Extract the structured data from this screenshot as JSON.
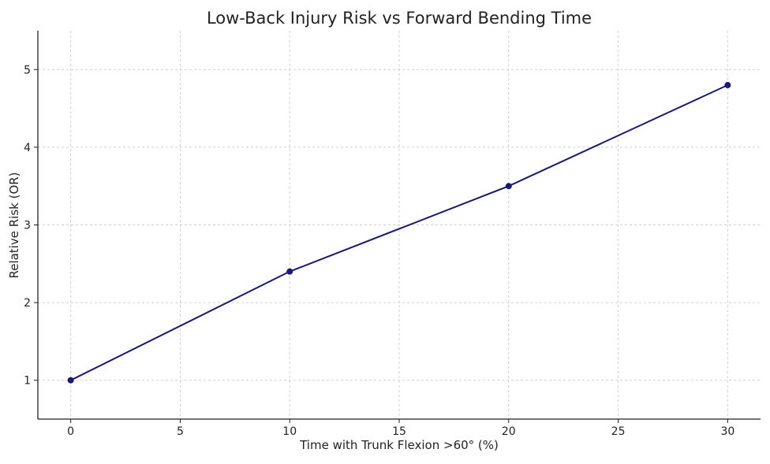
{
  "chart_data": {
    "type": "line",
    "title": "Low-Back Injury Risk vs Forward Bending Time",
    "xlabel": "Time with Trunk Flexion >60° (%)",
    "ylabel": "Relative Risk (OR)",
    "x": [
      0,
      10,
      20,
      30
    ],
    "series": [
      {
        "values": [
          1.0,
          2.4,
          3.5,
          4.8
        ],
        "color": "#1a1a6e",
        "marker": "circle"
      }
    ],
    "xlim": [
      -1.5,
      31.5
    ],
    "ylim": [
      0.5,
      5.5
    ],
    "xticks": [
      0,
      5,
      10,
      15,
      20,
      25,
      30
    ],
    "yticks": [
      1,
      2,
      3,
      4,
      5
    ],
    "grid": true,
    "legend": "none"
  }
}
